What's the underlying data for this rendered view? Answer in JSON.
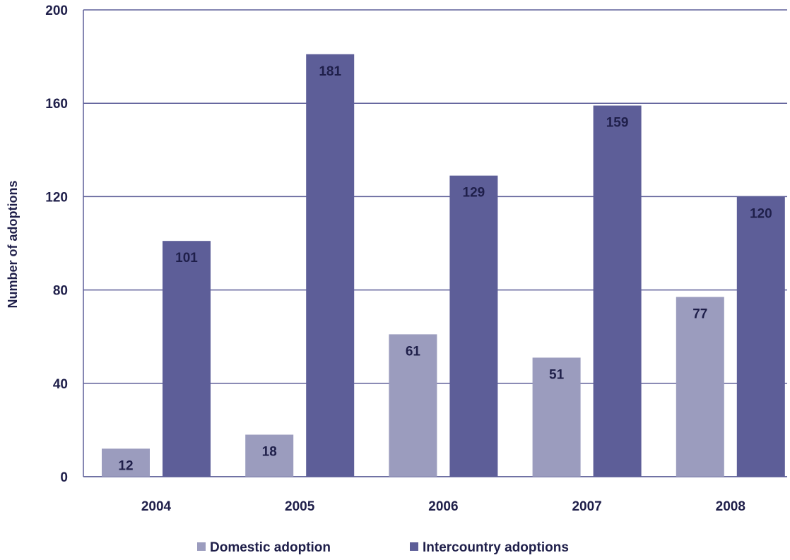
{
  "chart_data": {
    "type": "bar",
    "categories": [
      "2004",
      "2005",
      "2006",
      "2007",
      "2008"
    ],
    "series": [
      {
        "name": "Domestic adoption",
        "values": [
          12,
          18,
          61,
          51,
          77
        ],
        "color": "#9b9cbe"
      },
      {
        "name": "Intercountry adoptions",
        "values": [
          101,
          181,
          129,
          159,
          120
        ],
        "color": "#5d5e98"
      }
    ],
    "title": "",
    "xlabel": "",
    "ylabel": "Number of adoptions",
    "ylim": [
      0,
      200
    ],
    "yticks": [
      "0",
      "40",
      "80",
      "120",
      "160",
      "200"
    ],
    "grid": true,
    "legend_position": "bottom",
    "colors": {
      "gridline": "#5d5e98",
      "text": "#1f1f4a"
    }
  }
}
